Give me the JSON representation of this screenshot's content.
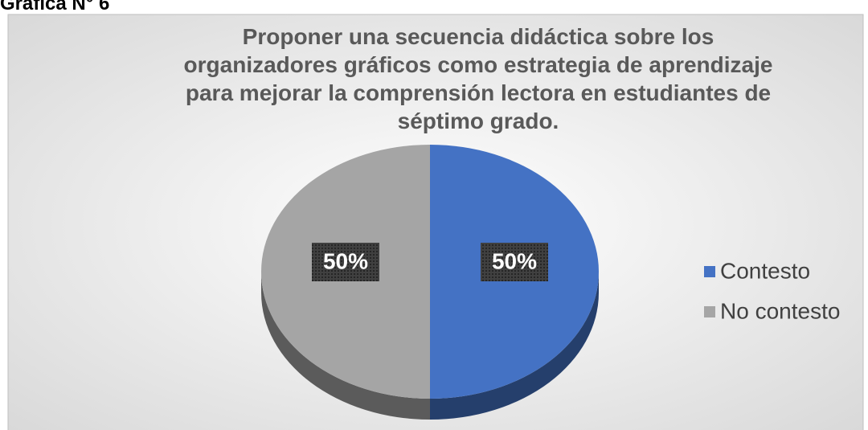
{
  "caption": "Gráfica N° 6",
  "chart_data": {
    "type": "pie",
    "title": [
      "Proponer una secuencia didáctica sobre los",
      "organizadores gráficos como estrategia de aprendizaje",
      "para mejorar la comprensión lectora en estudiantes de",
      "séptimo grado."
    ],
    "categories": [
      "Contesto",
      "No contesto"
    ],
    "values": [
      50,
      50
    ],
    "value_labels": [
      "50%",
      "50%"
    ],
    "colors": [
      "#4472c4",
      "#a5a5a5"
    ],
    "legend": "right"
  }
}
